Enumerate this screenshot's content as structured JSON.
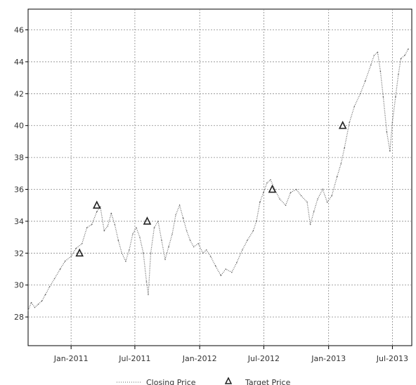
{
  "chart_data": {
    "type": "line",
    "title": "",
    "xlabel": "",
    "ylabel": "",
    "x_ticks": [
      "Jan-2011",
      "Jul-2011",
      "Jan-2012",
      "Jul-2012",
      "Jan-2013",
      "Jul-2013"
    ],
    "y_ticks": [
      28,
      30,
      32,
      34,
      36,
      38,
      40,
      42,
      44,
      46
    ],
    "xlim": [
      "2010-09-01",
      "2013-08-25"
    ],
    "ylim": [
      26.2,
      47.3
    ],
    "grid": true,
    "legend": "bottom",
    "series": [
      {
        "name": "Closing Price",
        "style": "dotted-line",
        "color": "#666666",
        "points": [
          [
            "2010-09-01",
            28.4
          ],
          [
            "2010-09-10",
            28.9
          ],
          [
            "2010-09-20",
            28.6
          ],
          [
            "2010-09-30",
            28.8
          ],
          [
            "2010-10-10",
            29.0
          ],
          [
            "2010-10-20",
            29.4
          ],
          [
            "2010-11-01",
            29.9
          ],
          [
            "2010-11-15",
            30.4
          ],
          [
            "2010-12-01",
            31.0
          ],
          [
            "2010-12-15",
            31.5
          ],
          [
            "2011-01-01",
            31.8
          ],
          [
            "2011-01-15",
            32.3
          ],
          [
            "2011-02-01",
            32.6
          ],
          [
            "2011-02-15",
            33.6
          ],
          [
            "2011-03-01",
            33.8
          ],
          [
            "2011-03-15",
            34.6
          ],
          [
            "2011-03-25",
            34.9
          ],
          [
            "2011-04-05",
            33.4
          ],
          [
            "2011-04-15",
            33.7
          ],
          [
            "2011-04-25",
            34.5
          ],
          [
            "2011-05-05",
            33.8
          ],
          [
            "2011-05-15",
            32.8
          ],
          [
            "2011-05-25",
            32.0
          ],
          [
            "2011-06-05",
            31.5
          ],
          [
            "2011-06-15",
            32.2
          ],
          [
            "2011-06-25",
            33.2
          ],
          [
            "2011-07-05",
            33.6
          ],
          [
            "2011-07-15",
            33.0
          ],
          [
            "2011-07-25",
            32.0
          ],
          [
            "2011-08-03",
            30.2
          ],
          [
            "2011-08-08",
            29.4
          ],
          [
            "2011-08-15",
            32.0
          ],
          [
            "2011-08-25",
            33.6
          ],
          [
            "2011-09-05",
            34.0
          ],
          [
            "2011-09-15",
            32.8
          ],
          [
            "2011-09-25",
            31.6
          ],
          [
            "2011-10-05",
            32.4
          ],
          [
            "2011-10-15",
            33.2
          ],
          [
            "2011-10-25",
            34.4
          ],
          [
            "2011-11-05",
            35.0
          ],
          [
            "2011-11-15",
            34.2
          ],
          [
            "2011-11-25",
            33.4
          ],
          [
            "2011-12-05",
            32.8
          ],
          [
            "2011-12-15",
            32.4
          ],
          [
            "2011-12-28",
            32.6
          ],
          [
            "2012-01-10",
            32.0
          ],
          [
            "2012-01-20",
            32.2
          ],
          [
            "2012-02-01",
            31.8
          ],
          [
            "2012-02-15",
            31.2
          ],
          [
            "2012-03-01",
            30.6
          ],
          [
            "2012-03-15",
            31.0
          ],
          [
            "2012-04-01",
            30.8
          ],
          [
            "2012-04-15",
            31.4
          ],
          [
            "2012-05-01",
            32.2
          ],
          [
            "2012-05-15",
            32.8
          ],
          [
            "2012-06-01",
            33.4
          ],
          [
            "2012-06-10",
            34.0
          ],
          [
            "2012-06-20",
            35.2
          ],
          [
            "2012-06-30",
            35.8
          ],
          [
            "2012-07-10",
            36.4
          ],
          [
            "2012-07-20",
            36.6
          ],
          [
            "2012-08-01",
            36.0
          ],
          [
            "2012-08-15",
            35.4
          ],
          [
            "2012-09-01",
            35.0
          ],
          [
            "2012-09-15",
            35.8
          ],
          [
            "2012-10-01",
            36.0
          ],
          [
            "2012-10-15",
            35.6
          ],
          [
            "2012-11-01",
            35.2
          ],
          [
            "2012-11-10",
            33.8
          ],
          [
            "2012-11-20",
            34.6
          ],
          [
            "2012-12-01",
            35.4
          ],
          [
            "2012-12-15",
            36.0
          ],
          [
            "2012-12-28",
            35.2
          ],
          [
            "2013-01-10",
            35.6
          ],
          [
            "2013-01-25",
            36.8
          ],
          [
            "2013-02-05",
            37.6
          ],
          [
            "2013-02-15",
            38.6
          ],
          [
            "2013-03-01",
            40.2
          ],
          [
            "2013-03-15",
            41.2
          ],
          [
            "2013-04-01",
            42.0
          ],
          [
            "2013-04-15",
            42.8
          ],
          [
            "2013-05-01",
            43.8
          ],
          [
            "2013-05-10",
            44.4
          ],
          [
            "2013-05-20",
            44.6
          ],
          [
            "2013-05-28",
            43.4
          ],
          [
            "2013-06-05",
            41.8
          ],
          [
            "2013-06-15",
            39.6
          ],
          [
            "2013-06-24",
            38.4
          ],
          [
            "2013-07-01",
            40.2
          ],
          [
            "2013-07-10",
            41.8
          ],
          [
            "2013-07-18",
            43.2
          ],
          [
            "2013-07-25",
            44.2
          ],
          [
            "2013-08-05",
            44.4
          ],
          [
            "2013-08-15",
            44.8
          ]
        ]
      },
      {
        "name": "Target Price",
        "style": "triangle-marker",
        "color": "#222222",
        "points": [
          [
            "2011-01-25",
            32.0
          ],
          [
            "2011-03-15",
            35.0
          ],
          [
            "2011-08-05",
            34.0
          ],
          [
            "2012-07-25",
            36.0
          ],
          [
            "2013-02-10",
            40.0
          ]
        ]
      }
    ]
  }
}
